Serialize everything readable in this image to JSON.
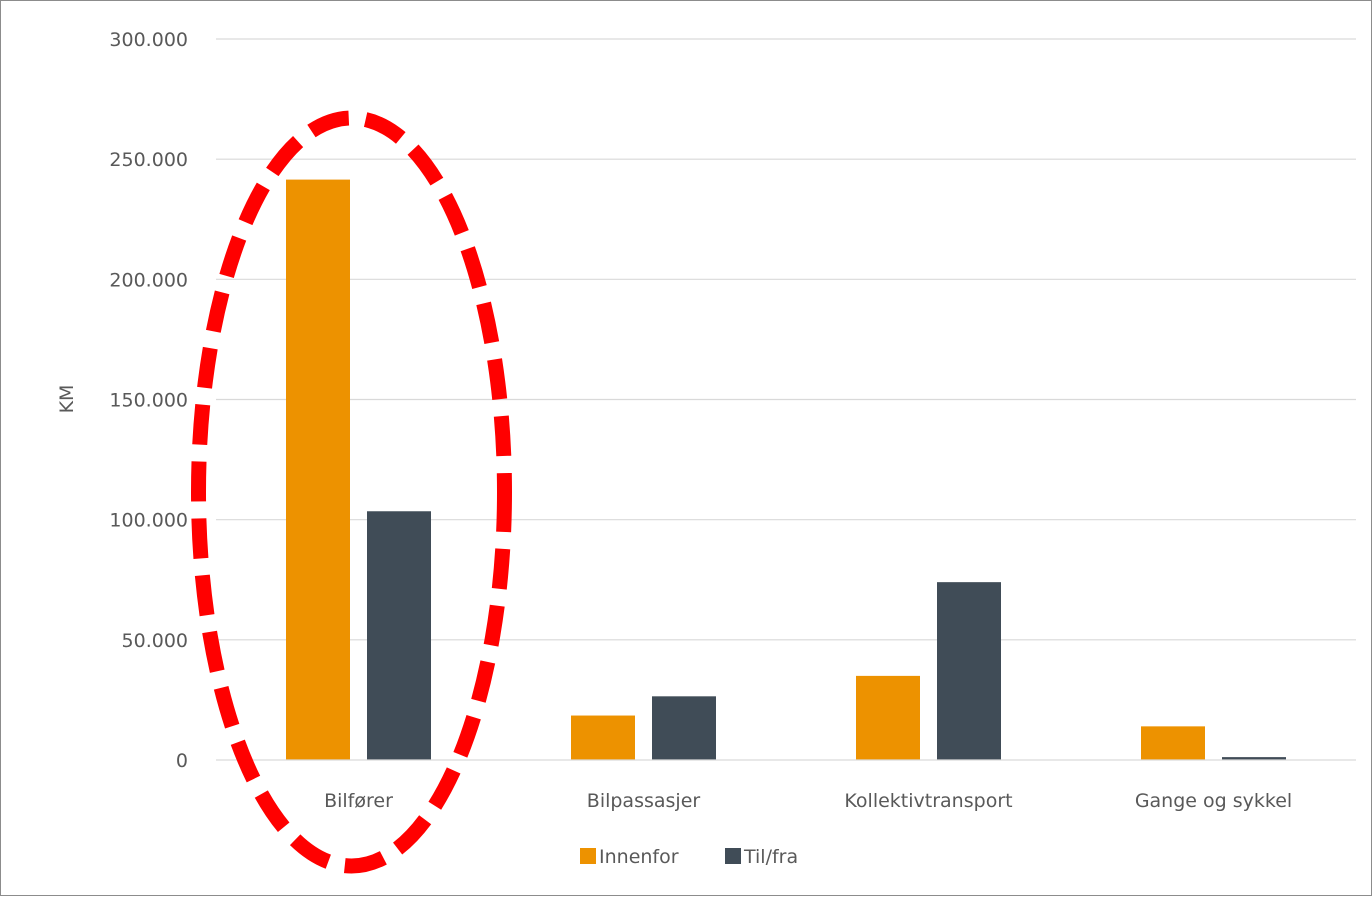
{
  "chart_data": {
    "type": "bar",
    "title": "",
    "xlabel": "",
    "ylabel": "KM",
    "ylim": [
      0,
      300000
    ],
    "yticks": [
      0,
      50000,
      100000,
      150000,
      200000,
      250000,
      300000
    ],
    "ytick_labels": [
      "0",
      "50.000",
      "100.000",
      "150.000",
      "200.000",
      "250.000",
      "300.000"
    ],
    "categories": [
      "Bilfører",
      "Bilpassasjer",
      "Kollektivtransport",
      "Gange og sykkel"
    ],
    "series": [
      {
        "name": "Innenfor",
        "color": "#ED9200",
        "values": [
          241500,
          18500,
          35000,
          14000
        ]
      },
      {
        "name": "Til/fra",
        "color": "#404C57",
        "values": [
          103500,
          26500,
          74000,
          1200
        ]
      }
    ],
    "grid": true,
    "legend_position": "bottom",
    "annotation": {
      "type": "dashed-ellipse",
      "target_category": "Bilfører",
      "color": "#FF0000"
    }
  }
}
